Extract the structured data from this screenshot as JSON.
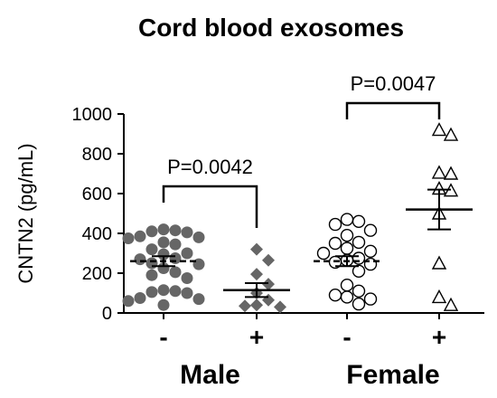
{
  "chart_data": {
    "type": "scatter",
    "title": "Cord blood exosomes",
    "ylabel": "CNTN2 (pg/mL)",
    "ylim": [
      0,
      1000
    ],
    "yticks": [
      0,
      200,
      400,
      600,
      800,
      1000
    ],
    "grid": false,
    "groups": [
      {
        "name": "Male",
        "labels": [
          "-",
          "+"
        ]
      },
      {
        "name": "Female",
        "labels": [
          "-",
          "+"
        ]
      }
    ],
    "series": [
      {
        "sex": "Male",
        "label": "-",
        "marker": "filled-circle",
        "color": "#666666",
        "mean": 260,
        "sem": 25,
        "values": [
          420,
          415,
          410,
          405,
          385,
          380,
          375,
          355,
          345,
          320,
          300,
          295,
          275,
          270,
          250,
          245,
          225,
          205,
          190,
          175,
          115,
          110,
          105,
          100,
          75,
          70,
          60,
          40
        ]
      },
      {
        "sex": "Male",
        "label": "+",
        "marker": "filled-diamond",
        "color": "#666666",
        "mean": 115,
        "sem": 35,
        "values": [
          320,
          265,
          195,
          145,
          100,
          65,
          40,
          35,
          30
        ]
      },
      {
        "sex": "Female",
        "label": "-",
        "marker": "open-circle",
        "color": "#000000",
        "mean": 260,
        "sem": 25,
        "values": [
          470,
          460,
          445,
          415,
          390,
          355,
          350,
          325,
          310,
          300,
          275,
          265,
          255,
          245,
          210,
          140,
          110,
          90,
          80,
          70,
          45
        ]
      },
      {
        "sex": "Female",
        "label": "+",
        "marker": "open-triangle",
        "color": "#000000",
        "mean": 520,
        "sem": 100,
        "values": [
          920,
          895,
          705,
          700,
          625,
          615,
          500,
          250,
          80,
          40
        ]
      }
    ],
    "annotations": [
      {
        "text": "P=0.0042",
        "between": [
          "Male -",
          "Male +"
        ]
      },
      {
        "text": "P=0.0047",
        "between": [
          "Female -",
          "Female +"
        ]
      }
    ]
  }
}
